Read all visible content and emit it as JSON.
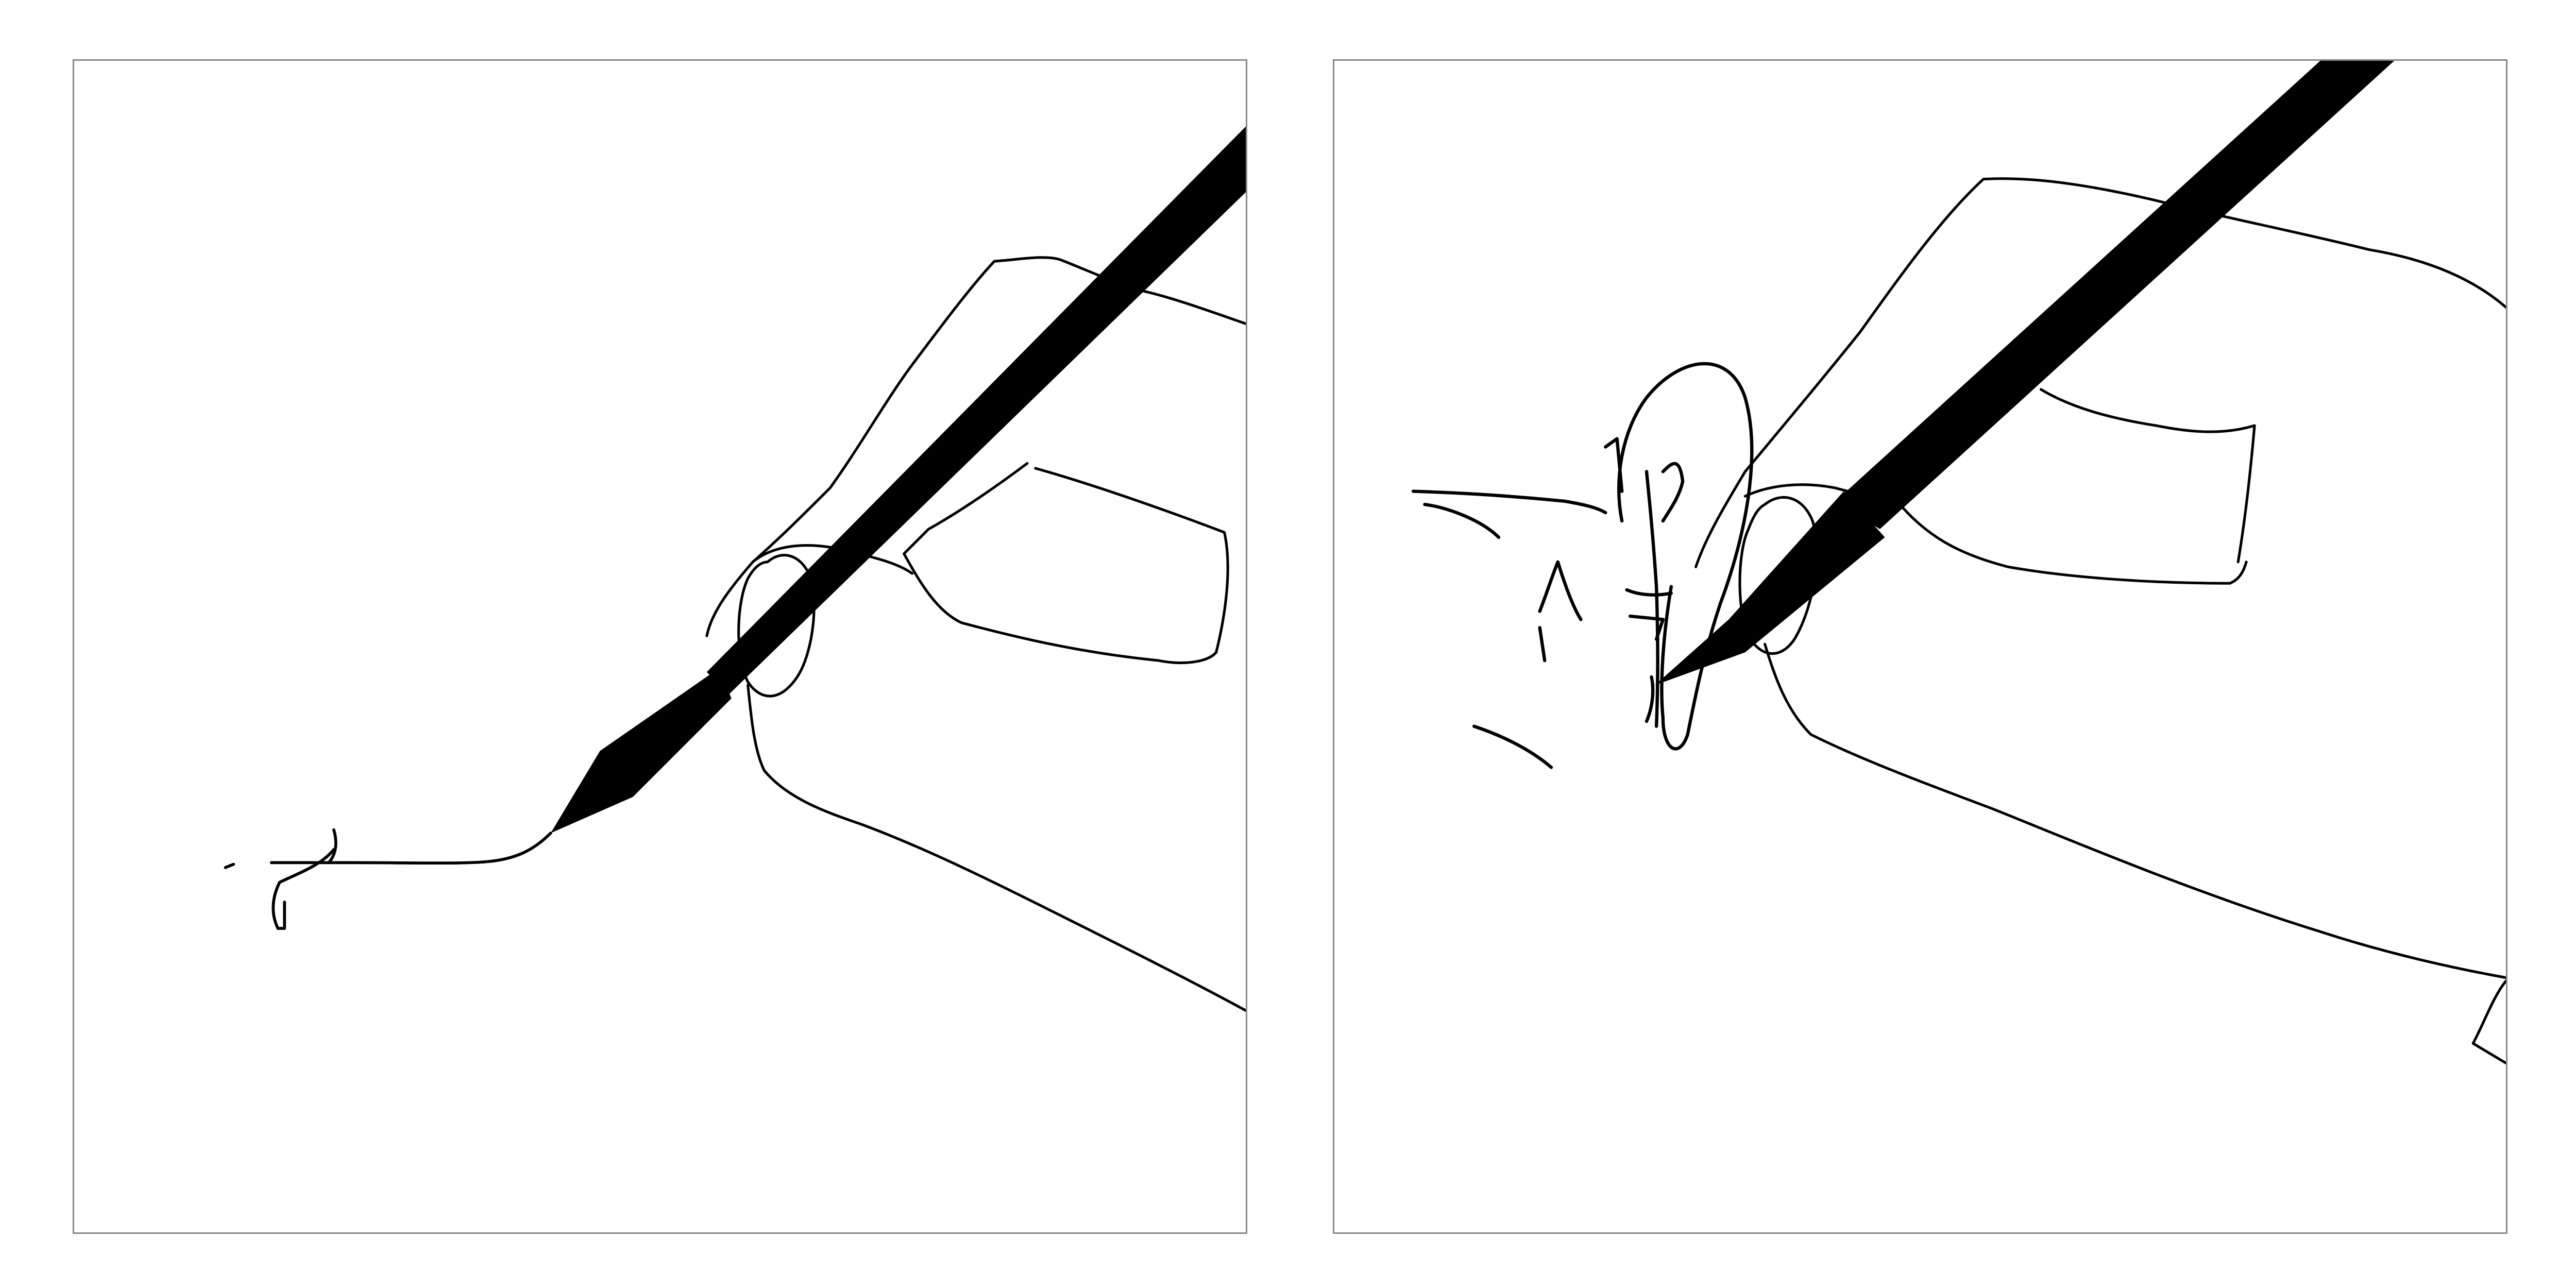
{
  "panels": [
    {
      "name": "left-drawing-panel",
      "subject": "hand-holding-pen"
    },
    {
      "name": "right-drawing-panel",
      "subject": "hand-holding-pen"
    }
  ],
  "colors": {
    "ink": "#000000",
    "frame_border": "#888888",
    "background": "#ffffff"
  }
}
